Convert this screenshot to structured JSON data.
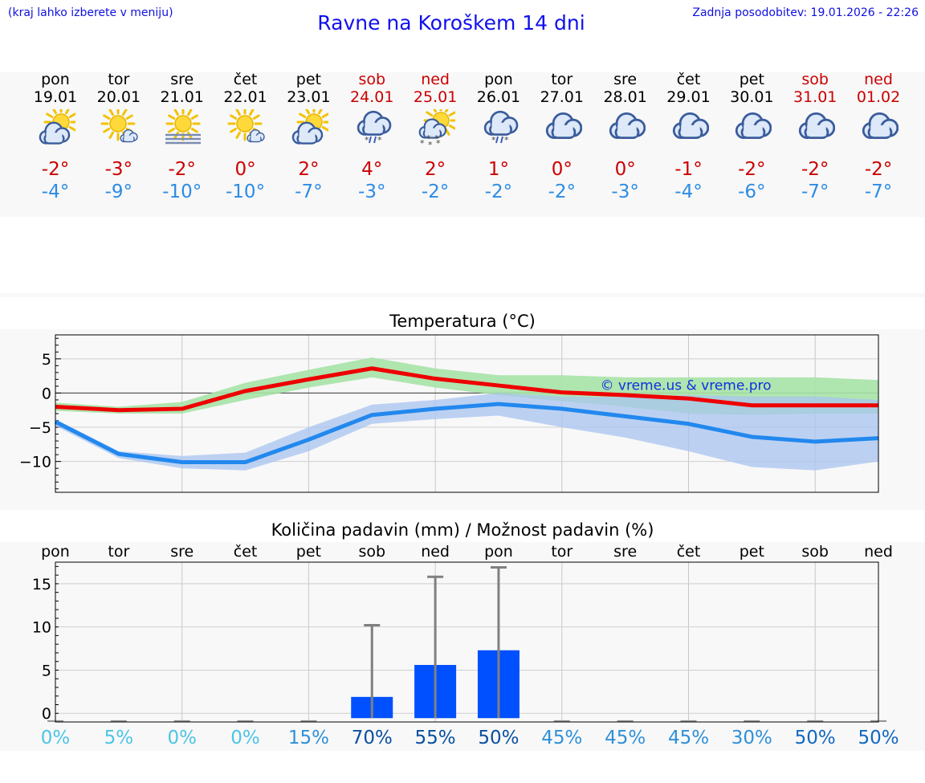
{
  "header": {
    "note_left": "(kraj lahko izberete v meniju)",
    "title": "Ravne na Koroškem 14 dni",
    "note_right": "Zadnja posodobitev: 19.01.2026 - 22:26"
  },
  "days": [
    {
      "name": "pon",
      "date": "19.01",
      "icon": "partly-cloudy-sun-icon",
      "weekend": false,
      "tmax": "-2°",
      "tmin": "-4°"
    },
    {
      "name": "tor",
      "date": "20.01",
      "icon": "sun-small-cloud-icon",
      "weekend": false,
      "tmax": "-3°",
      "tmin": "-9°"
    },
    {
      "name": "sre",
      "date": "21.01",
      "icon": "sun-fog-icon",
      "weekend": false,
      "tmax": "-2°",
      "tmin": "-10°"
    },
    {
      "name": "čet",
      "date": "22.01",
      "icon": "sun-small-cloud-icon",
      "weekend": false,
      "tmax": "0°",
      "tmin": "-10°"
    },
    {
      "name": "pet",
      "date": "23.01",
      "icon": "partly-cloudy-sun-icon",
      "weekend": false,
      "tmax": "2°",
      "tmin": "-7°"
    },
    {
      "name": "sob",
      "date": "24.01",
      "icon": "cloud-snow-rain-icon",
      "weekend": true,
      "tmax": "4°",
      "tmin": "-3°"
    },
    {
      "name": "ned",
      "date": "25.01",
      "icon": "sun-snow-icon",
      "weekend": true,
      "tmax": "2°",
      "tmin": "-2°"
    },
    {
      "name": "pon",
      "date": "26.01",
      "icon": "cloud-snow-rain-icon",
      "weekend": false,
      "tmax": "1°",
      "tmin": "-2°"
    },
    {
      "name": "tor",
      "date": "27.01",
      "icon": "cloudy-icon",
      "weekend": false,
      "tmax": "0°",
      "tmin": "-2°"
    },
    {
      "name": "sre",
      "date": "28.01",
      "icon": "cloudy-icon",
      "weekend": false,
      "tmax": "0°",
      "tmin": "-3°"
    },
    {
      "name": "čet",
      "date": "29.01",
      "icon": "cloudy-icon",
      "weekend": false,
      "tmax": "-1°",
      "tmin": "-4°"
    },
    {
      "name": "pet",
      "date": "30.01",
      "icon": "cloudy-icon",
      "weekend": false,
      "tmax": "-2°",
      "tmin": "-6°"
    },
    {
      "name": "sob",
      "date": "31.01",
      "icon": "cloudy-icon",
      "weekend": true,
      "tmax": "-2°",
      "tmin": "-7°"
    },
    {
      "name": "ned",
      "date": "01.02",
      "icon": "cloudy-icon",
      "weekend": true,
      "tmax": "-2°",
      "tmin": "-7°"
    }
  ],
  "colors": {
    "max_line": "#ee0000",
    "max_band": "#a6e2a6",
    "min_line": "#2288ee",
    "min_band": "#a8c4f0",
    "precip_bar": "#0050ff",
    "whisker": "#808080",
    "title_blue": "#1010ee"
  },
  "chart_data": [
    {
      "type": "line",
      "title": "Temperatura (°C)",
      "watermark": "© vreme.us & vreme.pro",
      "ylim": [
        -14.5,
        8.5
      ],
      "yticks": [
        5,
        0,
        -5,
        -10
      ],
      "ytick_labels": [
        "5",
        "0",
        "−5",
        "−10"
      ],
      "grid": true,
      "series": [
        {
          "name": "max",
          "values": [
            -2,
            -2.5,
            -2.3,
            0.3,
            2,
            3.6,
            2.1,
            1.1,
            0.1,
            -0.3,
            -0.8,
            -1.8,
            -1.8,
            -1.8
          ],
          "band_low": [
            -2.6,
            -3,
            -3,
            -1,
            0.8,
            2.3,
            0.8,
            -0.3,
            -1.2,
            -2,
            -3,
            -3.2,
            -3,
            -3
          ],
          "band_high": [
            -1.4,
            -2,
            -1.3,
            1.5,
            3.4,
            5.2,
            3.6,
            2.6,
            2.6,
            2.3,
            2.3,
            2.3,
            2.3,
            1.9
          ]
        },
        {
          "name": "min",
          "values": [
            -4.2,
            -8.9,
            -10.1,
            -10.1,
            -6.8,
            -3.2,
            -2.3,
            -1.6,
            -2.3,
            -3.4,
            -4.5,
            -6.4,
            -7.1,
            -6.6
          ],
          "band_low": [
            -4.8,
            -9.5,
            -11,
            -11.3,
            -8.5,
            -4.5,
            -3.8,
            -3.3,
            -5,
            -6.5,
            -8.5,
            -10.8,
            -11.3,
            -10
          ],
          "band_high": [
            -3.8,
            -8.5,
            -9.2,
            -8.7,
            -5,
            -1.7,
            -1,
            0,
            -0.5,
            -0.6,
            -0.3,
            -0.5,
            -0.5,
            -1
          ]
        }
      ]
    },
    {
      "type": "bar",
      "title": "Količina padavin (mm) / Možnost padavin (%)",
      "ylim": [
        -1,
        17.5
      ],
      "yticks": [
        0,
        5,
        10,
        15
      ],
      "ytick_labels": [
        "0",
        "5",
        "10",
        "15"
      ],
      "categories": [
        "pon",
        "tor",
        "sre",
        "čet",
        "pet",
        "sob",
        "ned",
        "pon",
        "tor",
        "sre",
        "čet",
        "pet",
        "sob",
        "ned"
      ],
      "values": [
        0,
        0,
        0,
        0,
        0,
        1.9,
        5.6,
        7.3,
        0,
        0,
        0,
        0,
        0,
        0
      ],
      "error_high": [
        0,
        0,
        0,
        0,
        0,
        10.2,
        15.8,
        16.9,
        0,
        0,
        0,
        0,
        0,
        0
      ],
      "probabilities": [
        "0%",
        "5%",
        "0%",
        "0%",
        "15%",
        "70%",
        "55%",
        "50%",
        "45%",
        "45%",
        "45%",
        "30%",
        "50%",
        "50%"
      ],
      "prob_values": [
        0,
        5,
        0,
        0,
        15,
        70,
        55,
        50,
        45,
        45,
        45,
        30,
        50,
        50
      ]
    }
  ]
}
